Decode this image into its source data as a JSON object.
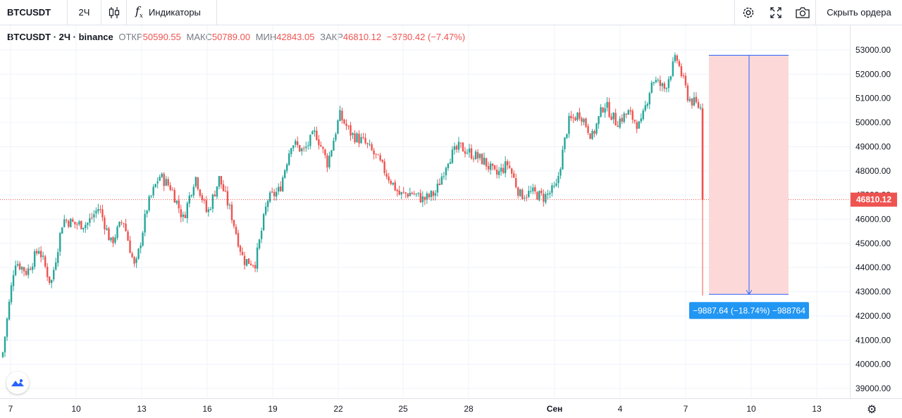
{
  "toolbar": {
    "symbol": "BTCUSDT",
    "interval": "2Ч",
    "indicators_label": "Индикаторы",
    "hide_orders_label": "Скрыть ордера"
  },
  "legend": {
    "symbol": "BTCUSDT",
    "interval": "2Ч",
    "exchange": "binance",
    "open_label": "ОТКР",
    "open_value": "50590.55",
    "high_label": "МАКС",
    "high_value": "50789.00",
    "low_label": "МИН",
    "low_value": "42843.05",
    "close_label": "ЗАКР",
    "close_value": "46810.12",
    "change": "−3780.42 (−7.47%)"
  },
  "colors": {
    "up": "#26a69a",
    "down": "#ef5350",
    "measure_fill": "#fcd9d8",
    "measure_line": "#2962ff",
    "label_bg": "#2196f3"
  },
  "chart_data": {
    "type": "candlestick",
    "price_label": "46810.12",
    "y_ticks": [
      "53000.00",
      "52000.00",
      "51000.00",
      "50000.00",
      "49000.00",
      "48000.00",
      "47000.00",
      "46000.00",
      "45000.00",
      "44000.00",
      "43000.00",
      "42000.00",
      "41000.00",
      "40000.00",
      "39000.00"
    ],
    "x_ticks": [
      "7",
      "10",
      "13",
      "16",
      "19",
      "22",
      "25",
      "28",
      "Сен",
      "4",
      "7",
      "10",
      "13"
    ],
    "ylim": [
      38500,
      53300
    ],
    "close_path": [
      40500,
      44300,
      43800,
      44800,
      43300,
      46000,
      45800,
      45800,
      46500,
      45000,
      46000,
      43900,
      46500,
      47800,
      47300,
      46000,
      47800,
      46200,
      47700,
      46200,
      44300,
      44200,
      46800,
      47200,
      49200,
      48800,
      49600,
      48300,
      50300,
      49500,
      49200,
      48600,
      47800,
      47000,
      47100,
      46800,
      47100,
      48500,
      49000,
      48700,
      48400,
      47800,
      48300,
      47000,
      47100,
      46900,
      47300,
      50000,
      50400,
      49400,
      50800,
      50000,
      50400,
      49800,
      51800,
      51400,
      52700,
      51000,
      50600,
      46810
    ],
    "measure": {
      "from_price": 52780,
      "to_price": 42893,
      "label": "−9887.64 (−18.74%) −988764"
    }
  }
}
